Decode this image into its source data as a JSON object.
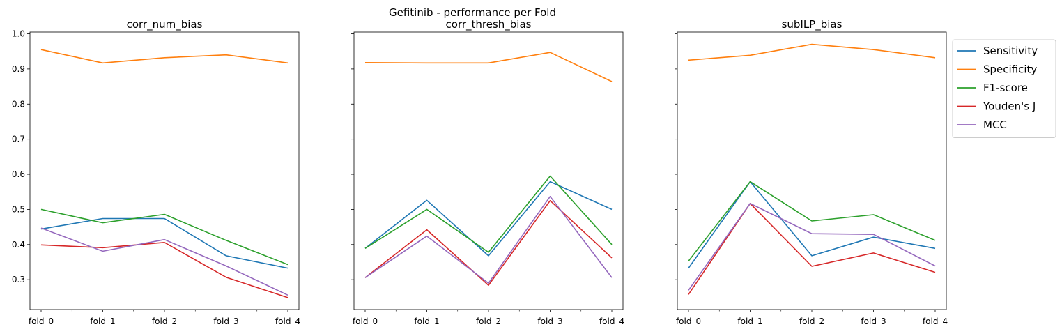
{
  "figure": {
    "title": "Gefitinib - performance per Fold"
  },
  "chart_data": {
    "type": "line",
    "categories": [
      "fold_0",
      "fold_1",
      "fold_2",
      "fold_3",
      "fold_4"
    ],
    "ylim": [
      0.215,
      1.005
    ],
    "yticks": [
      0.3,
      0.4,
      0.5,
      0.6,
      0.7,
      0.8,
      0.9,
      1.0
    ],
    "ytick_labels": [
      "0.3",
      "0.4",
      "0.5",
      "0.6",
      "0.7",
      "0.8",
      "0.9",
      "1.0"
    ],
    "grid": false,
    "legend_position": "outside right",
    "series_meta": [
      {
        "name": "Sensitivity",
        "color": "#1f77b4"
      },
      {
        "name": "Specificity",
        "color": "#ff7f0e"
      },
      {
        "name": "F1-score",
        "color": "#2ca02c"
      },
      {
        "name": "Youden's J",
        "color": "#d62728"
      },
      {
        "name": "MCC",
        "color": "#9467bd"
      }
    ],
    "panels": [
      {
        "title": "corr_num_bias",
        "series": [
          {
            "name": "Sensitivity",
            "values": [
              0.444,
              0.474,
              0.474,
              0.368,
              0.333
            ]
          },
          {
            "name": "Specificity",
            "values": [
              0.955,
              0.917,
              0.932,
              0.94,
              0.917
            ]
          },
          {
            "name": "F1-score",
            "values": [
              0.5,
              0.462,
              0.486,
              0.412,
              0.343
            ]
          },
          {
            "name": "Youden's J",
            "values": [
              0.399,
              0.391,
              0.406,
              0.307,
              0.249
            ]
          },
          {
            "name": "MCC",
            "values": [
              0.447,
              0.381,
              0.414,
              0.339,
              0.256
            ]
          }
        ]
      },
      {
        "title": "corr_thresh_bias",
        "series": [
          {
            "name": "Sensitivity",
            "values": [
              0.389,
              0.526,
              0.368,
              0.579,
              0.5
            ]
          },
          {
            "name": "Specificity",
            "values": [
              0.918,
              0.917,
              0.917,
              0.947,
              0.864
            ]
          },
          {
            "name": "F1-score",
            "values": [
              0.389,
              0.5,
              0.378,
              0.595,
              0.4
            ]
          },
          {
            "name": "Youden's J",
            "values": [
              0.306,
              0.442,
              0.284,
              0.525,
              0.362
            ]
          },
          {
            "name": "MCC",
            "values": [
              0.306,
              0.424,
              0.29,
              0.537,
              0.306
            ]
          }
        ]
      },
      {
        "title": "subILP_bias",
        "series": [
          {
            "name": "Sensitivity",
            "values": [
              0.333,
              0.579,
              0.368,
              0.421,
              0.389
            ]
          },
          {
            "name": "Specificity",
            "values": [
              0.925,
              0.939,
              0.97,
              0.955,
              0.932
            ]
          },
          {
            "name": "F1-score",
            "values": [
              0.353,
              0.579,
              0.467,
              0.485,
              0.412
            ]
          },
          {
            "name": "Youden's J",
            "values": [
              0.258,
              0.517,
              0.338,
              0.376,
              0.321
            ]
          },
          {
            "name": "MCC",
            "values": [
              0.27,
              0.517,
              0.431,
              0.429,
              0.339
            ]
          }
        ]
      }
    ]
  }
}
